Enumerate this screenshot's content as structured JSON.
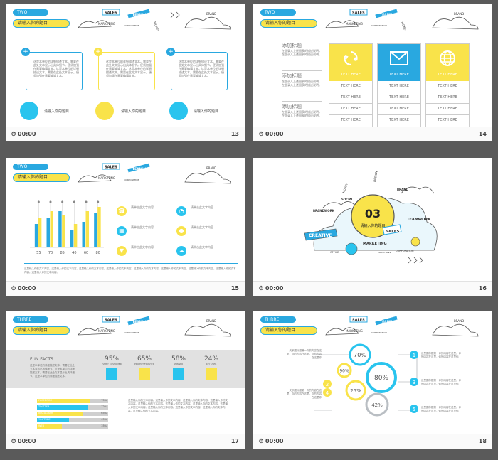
{
  "colors": {
    "blue": "#29a8e0",
    "yellow": "#f9e34a",
    "gray": "#9aa0a6",
    "bg": "#5a5a5a"
  },
  "common": {
    "time": "00:00",
    "sales": "SALES",
    "teamwork": "TEAMWORK",
    "marketing": "MARKETING",
    "corporation": "CORPORATION",
    "brand": "BRAND",
    "money": "MONEY",
    "design": "DESIGN"
  },
  "slide13": {
    "number": "13",
    "tag": "TWO",
    "title": "请输入你的题目",
    "body": "这是本单位的详细描述文本。需要在此处文本显示出具体细节。便须加强在需要编辑文本。这是本单位的详细描述文本。需要在此处文本显示。便须加强在需要编辑文本。",
    "circle_label": "请输入你的题目",
    "plus": "+"
  },
  "slide14": {
    "number": "14",
    "tag": "TWO",
    "title": "请输入你的题目",
    "items": [
      {
        "heading": "添加标题",
        "text": "在此录入上述图表的描述说明，在此录入上述图表的描述说明。"
      },
      {
        "heading": "添加标题",
        "text": "在此录入上述图表的描述说明，在此录入上述图表的描述说明。"
      },
      {
        "heading": "添加标题",
        "text": "在此录入上述图表的描述说明，在此录入上述图表的描述说明。"
      }
    ],
    "cards": [
      {
        "icon": "recycle-icon",
        "head": "TEXT HERE",
        "rows": [
          "TEXT HERE",
          "TEXT HERE",
          "TEXT HERE",
          "TEXT HERE"
        ]
      },
      {
        "icon": "envelope-icon",
        "head": "TEXT HERE",
        "rows": [
          "TEXT HERE",
          "TEXT HERE",
          "TEXT HERE",
          "TEXT HERE"
        ]
      },
      {
        "icon": "globe-icon",
        "head": "TEXT HERE",
        "rows": [
          "TEXT HERE",
          "TEXT HERE",
          "TEXT HERE",
          "TEXT HERE"
        ]
      }
    ]
  },
  "slide15": {
    "number": "15",
    "tag": "TWO",
    "title": "请输入你的题目",
    "icon_label": "请单击此文字内容",
    "icons": [
      "phone-icon",
      "chart-icon",
      "calendar-icon",
      "pin-icon",
      "location-icon",
      "cloud-icon"
    ],
    "caption": "这里输入你的文本内容。这里输入你的文本内容。这里输入你的文本内容。这里输入你的文本内容。这里输入你的文本内容。这里输入你的文本内容。这里输入你的文本内容。这里输入你的文本内容。这里输入你的文本内容。"
  },
  "chart_data": {
    "type": "bar",
    "categories": [
      "55",
      "70",
      "85",
      "40",
      "60",
      "80"
    ],
    "series": [
      {
        "values": [
          55,
          70,
          85,
          40,
          60,
          80
        ]
      },
      {
        "values": [
          70,
          85,
          75,
          55,
          85,
          95
        ]
      }
    ],
    "ylim": [
      0,
      100
    ]
  },
  "slide16": {
    "number": "16",
    "section": "03",
    "title": "请输入你的题目",
    "words": [
      "CREATIVE",
      "SALES",
      "TEAMWORK",
      "MARKETING",
      "BRANDWORK",
      "SOCIAL",
      "MONEY",
      "BRAND",
      "DESIGN",
      "CORPORATION",
      "OFFICE",
      "SOLUTIONS"
    ]
  },
  "slide17": {
    "number": "17",
    "tag": "THRRE",
    "title": "请输入你的题目",
    "facts_title": "FUN FACTS",
    "facts_text": "这是本单位的详细描述文本。需要在此处文本显示出具体细节。这是本单位的详细描述文本。需要在此处文本显示出具体细节。这是本单位的详细描述文本。",
    "stats": [
      {
        "pct": "95%",
        "label": "HAPPY CUSTOMER"
      },
      {
        "pct": "65%",
        "label": "PROJECT FINISHED"
      },
      {
        "pct": "58%",
        "label": "WINNER"
      },
      {
        "pct": "24%",
        "label": "KEY USER"
      }
    ],
    "bars": [
      {
        "label": "FACEBOOK",
        "value": "75%",
        "pct": 75
      },
      {
        "label": "TWITTER",
        "value": "72%",
        "pct": 72
      },
      {
        "label": "INSTAGRAM",
        "value": "65%",
        "pct": 65
      },
      {
        "label": "YOUTUBE",
        "value": "45%",
        "pct": 45
      },
      {
        "label": "WEB",
        "value": "35%",
        "pct": 35
      }
    ],
    "paragraph": "这里输入你的文本内容。这里输入你的文本内容。这里输入你的文本内容。这里输入你的文本内容。这里输入你的文本内容。这里输入你的文本内容。这里输入你的文本内容。这里输入你的文本内容。这里输入你的文本内容。这里输入你的文本内容。这里输入你的文本内容。这里输入你的文本内容。"
  },
  "slide18": {
    "number": "18",
    "tag": "THRRE",
    "title": "请输入你的题目",
    "circles": [
      {
        "pct": "70%"
      },
      {
        "pct": "90%"
      },
      {
        "pct": "80%"
      },
      {
        "pct": "25%"
      },
      {
        "pct": "42%"
      }
    ],
    "left": [
      {
        "num": "2",
        "text": "关系图标题第一你的内容在这里，你的内容在这里，你的内容在这里你"
      },
      {
        "num": "4",
        "text": "关系图标题第一你的内容在这里，你的内容在这里，你的内容在这里你"
      }
    ],
    "right": [
      {
        "num": "1",
        "text": "这里图标题第一你的内容在这里，你的内容在这里，你的内容在这里你"
      },
      {
        "num": "3",
        "text": "这里图标题第一你的内容在这里，你的内容在这里，你的内容在这里你"
      },
      {
        "num": "5",
        "text": "这里图标题第一你的内容在这里，你的内容在这里，你的内容在这里你"
      }
    ]
  }
}
